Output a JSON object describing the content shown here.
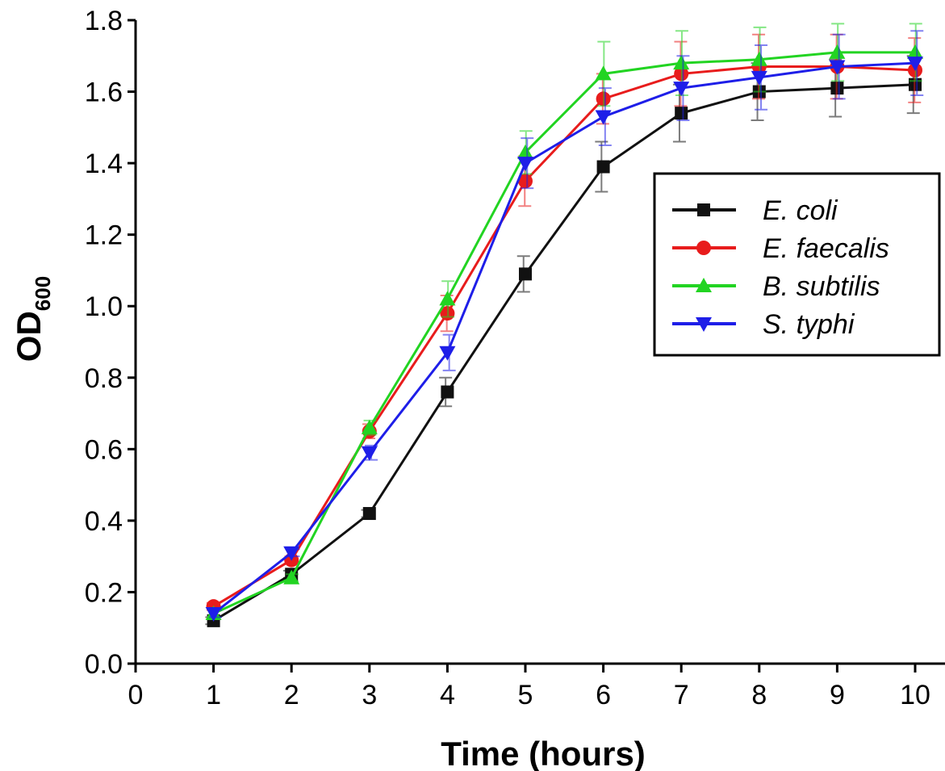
{
  "chart_data": {
    "type": "line",
    "xlabel": "Time (hours)",
    "ylabel": "OD",
    "ylabel_subscript": "600",
    "xlim": [
      0,
      10
    ],
    "ylim": [
      0,
      1.8
    ],
    "xticks": [
      "0",
      "1",
      "2",
      "3",
      "4",
      "5",
      "6",
      "7",
      "8",
      "9",
      "10"
    ],
    "yticks": [
      "0.0",
      "0.2",
      "0.4",
      "0.6",
      "0.8",
      "1.0",
      "1.2",
      "1.4",
      "1.6",
      "1.8"
    ],
    "grid": false,
    "legend_position": "right",
    "x": [
      1,
      2,
      3,
      4,
      5,
      6,
      7,
      8,
      9,
      10
    ],
    "series": [
      {
        "name": "E. coli",
        "color": "#111111",
        "marker": "square",
        "values": [
          0.12,
          0.25,
          0.42,
          0.76,
          1.09,
          1.39,
          1.54,
          1.6,
          1.61,
          1.62
        ],
        "errors": [
          0.01,
          0.01,
          0.01,
          0.04,
          0.05,
          0.07,
          0.08,
          0.08,
          0.08,
          0.08
        ]
      },
      {
        "name": "E. faecalis",
        "color": "#e81c1c",
        "marker": "circle",
        "values": [
          0.16,
          0.29,
          0.65,
          0.98,
          1.35,
          1.58,
          1.65,
          1.67,
          1.67,
          1.66
        ],
        "errors": [
          0.01,
          0.01,
          0.02,
          0.05,
          0.07,
          0.07,
          0.09,
          0.09,
          0.09,
          0.09
        ]
      },
      {
        "name": "B. subtilis",
        "color": "#22d422",
        "marker": "triangle-up",
        "values": [
          0.14,
          0.24,
          0.66,
          1.02,
          1.43,
          1.65,
          1.68,
          1.69,
          1.71,
          1.71
        ],
        "errors": [
          0.01,
          0.01,
          0.02,
          0.05,
          0.06,
          0.09,
          0.09,
          0.09,
          0.08,
          0.08
        ]
      },
      {
        "name": "S. typhi",
        "color": "#1e1ee8",
        "marker": "triangle-down",
        "values": [
          0.14,
          0.31,
          0.59,
          0.87,
          1.4,
          1.53,
          1.61,
          1.64,
          1.67,
          1.68
        ],
        "errors": [
          0.01,
          0.01,
          0.02,
          0.05,
          0.07,
          0.08,
          0.09,
          0.09,
          0.09,
          0.09
        ]
      }
    ]
  }
}
